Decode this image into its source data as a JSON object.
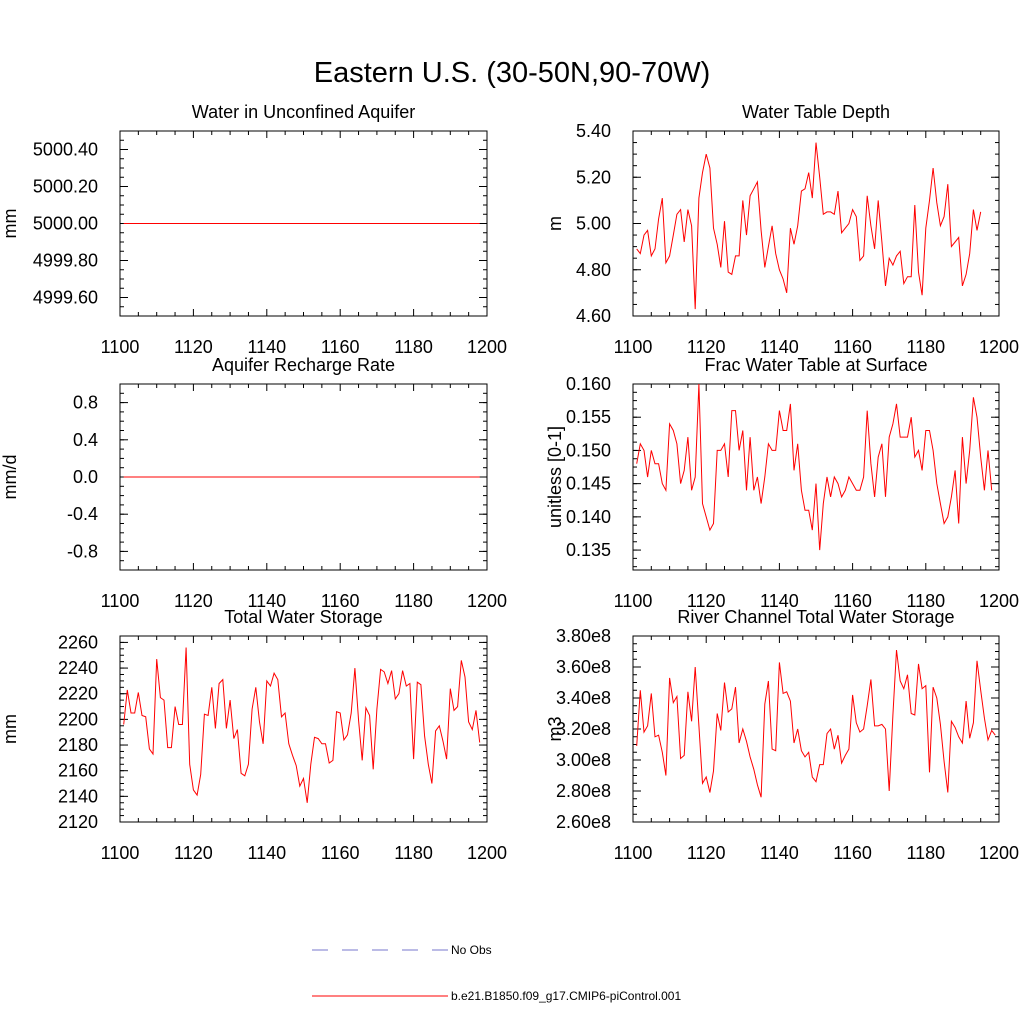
{
  "figure_title": "Eastern U.S. (30-50N,90-70W)",
  "legend": {
    "entries": [
      {
        "label": "No Obs",
        "color": "#7777cc",
        "dash": true
      },
      {
        "label": "b.e21.B1850.f09_g17.CMIP6-piControl.001",
        "color": "#ff0000",
        "dash": false
      }
    ]
  },
  "colors": {
    "series": "#ff0000",
    "obs": "#7777cc"
  },
  "chart_data": [
    {
      "type": "line",
      "title": "Water in Unconfined Aquifer",
      "ylabel": "mm",
      "xlim": [
        1100,
        1200
      ],
      "ylim": [
        4999.5,
        5000.5
      ],
      "xticks": [
        1100,
        1120,
        1140,
        1160,
        1180,
        1200
      ],
      "xtick_labels": [
        "1100",
        "1120",
        "1140",
        "1160",
        "1180",
        "1200"
      ],
      "yticks": [
        4999.6,
        4999.8,
        5000.0,
        5000.2,
        5000.4
      ],
      "ytick_labels": [
        "4999.60",
        "4999.80",
        "5000.00",
        "5000.20",
        "5000.40"
      ],
      "x_start": 1101,
      "series": [
        {
          "values": [
            5000,
            5000
          ]
        }
      ],
      "x_end": 1198
    },
    {
      "type": "line",
      "title": "Water Table Depth",
      "ylabel": "m",
      "xlim": [
        1100,
        1200
      ],
      "ylim": [
        4.6,
        5.4
      ],
      "xticks": [
        1100,
        1120,
        1140,
        1160,
        1180,
        1200
      ],
      "xtick_labels": [
        "1100",
        "1120",
        "1140",
        "1160",
        "1180",
        "1200"
      ],
      "yticks": [
        4.6,
        4.8,
        5.0,
        5.2,
        5.4
      ],
      "ytick_labels": [
        "4.60",
        "4.80",
        "5.00",
        "5.20",
        "5.40"
      ],
      "x_start": 1101,
      "series": [
        {
          "values": [
            4.89,
            4.87,
            4.95,
            4.97,
            4.86,
            4.89,
            5.02,
            5.11,
            4.83,
            4.86,
            4.95,
            5.04,
            5.06,
            4.92,
            5.06,
            4.99,
            4.63,
            5.11,
            5.22,
            5.3,
            5.24,
            4.98,
            4.91,
            4.81,
            5.01,
            4.79,
            4.78,
            4.86,
            4.86,
            5.1,
            4.95,
            5.12,
            5.15,
            5.18,
            4.97,
            4.81,
            4.9,
            4.99,
            4.87,
            4.8,
            4.76,
            4.7,
            4.98,
            4.91,
            4.99,
            5.14,
            5.15,
            5.22,
            5.11,
            5.35,
            5.2,
            5.04,
            5.05,
            5.05,
            5.04,
            5.14,
            4.96,
            4.98,
            5.0,
            5.06,
            5.03,
            4.84,
            4.86,
            5.12,
            4.99,
            4.89,
            5.1,
            4.92,
            4.73,
            4.85,
            4.82,
            4.86,
            4.88,
            4.74,
            4.77,
            4.77,
            5.08,
            4.79,
            4.69,
            4.98,
            5.1,
            5.24,
            5.09,
            4.99,
            5.03,
            5.17,
            4.9,
            4.92,
            4.94,
            4.73,
            4.78,
            4.87,
            5.06,
            4.97,
            5.05
          ]
        }
      ]
    },
    {
      "type": "line",
      "title": "Aquifer Recharge Rate",
      "ylabel": "mm/d",
      "xlim": [
        1100,
        1200
      ],
      "ylim": [
        -1.0,
        1.0
      ],
      "xticks": [
        1100,
        1120,
        1140,
        1160,
        1180,
        1200
      ],
      "xtick_labels": [
        "1100",
        "1120",
        "1140",
        "1160",
        "1180",
        "1200"
      ],
      "yticks": [
        -0.8,
        -0.4,
        0.0,
        0.4,
        0.8
      ],
      "ytick_labels": [
        "-0.8",
        "-0.4",
        "0.0",
        "0.4",
        "0.8"
      ],
      "x_start": 1101,
      "series": [
        {
          "values": [
            0,
            0
          ]
        }
      ],
      "x_end": 1198
    },
    {
      "type": "line",
      "title": "Frac Water Table at Surface",
      "ylabel": "unitless [0-1]",
      "xlim": [
        1100,
        1200
      ],
      "ylim": [
        0.132,
        0.16
      ],
      "xticks": [
        1100,
        1120,
        1140,
        1160,
        1180,
        1200
      ],
      "xtick_labels": [
        "1100",
        "1120",
        "1140",
        "1160",
        "1180",
        "1200"
      ],
      "yticks": [
        0.135,
        0.14,
        0.145,
        0.15,
        0.155,
        0.16
      ],
      "ytick_labels": [
        "0.135",
        "0.140",
        "0.145",
        "0.150",
        "0.155",
        "0.160"
      ],
      "x_start": 1101,
      "series": [
        {
          "values": [
            0.148,
            0.151,
            0.15,
            0.146,
            0.15,
            0.148,
            0.148,
            0.145,
            0.144,
            0.154,
            0.153,
            0.151,
            0.145,
            0.147,
            0.152,
            0.144,
            0.146,
            0.16,
            0.142,
            0.14,
            0.138,
            0.139,
            0.15,
            0.15,
            0.151,
            0.146,
            0.156,
            0.156,
            0.15,
            0.153,
            0.144,
            0.152,
            0.144,
            0.146,
            0.142,
            0.146,
            0.151,
            0.15,
            0.15,
            0.156,
            0.153,
            0.153,
            0.157,
            0.147,
            0.151,
            0.144,
            0.141,
            0.141,
            0.138,
            0.145,
            0.135,
            0.142,
            0.146,
            0.143,
            0.146,
            0.145,
            0.143,
            0.144,
            0.146,
            0.145,
            0.144,
            0.144,
            0.146,
            0.156,
            0.148,
            0.143,
            0.149,
            0.151,
            0.143,
            0.152,
            0.154,
            0.157,
            0.152,
            0.152,
            0.152,
            0.155,
            0.149,
            0.15,
            0.147,
            0.153,
            0.153,
            0.15,
            0.145,
            0.142,
            0.139,
            0.14,
            0.143,
            0.147,
            0.139,
            0.152,
            0.145,
            0.15,
            0.158,
            0.155,
            0.149,
            0.144,
            0.15,
            0.144
          ]
        }
      ]
    },
    {
      "type": "line",
      "title": "Total Water Storage",
      "ylabel": "mm",
      "xlim": [
        1100,
        1200
      ],
      "ylim": [
        2120,
        2265
      ],
      "xticks": [
        1100,
        1120,
        1140,
        1160,
        1180,
        1200
      ],
      "xtick_labels": [
        "1100",
        "1120",
        "1140",
        "1160",
        "1180",
        "1200"
      ],
      "yticks": [
        2120,
        2140,
        2160,
        2180,
        2200,
        2220,
        2240,
        2260
      ],
      "ytick_labels": [
        "2120",
        "2140",
        "2160",
        "2180",
        "2200",
        "2220",
        "2240",
        "2260"
      ],
      "x_start": 1101,
      "series": [
        {
          "values": [
            2196,
            2223,
            2205,
            2205,
            2221,
            2203,
            2202,
            2177,
            2173,
            2247,
            2217,
            2215,
            2178,
            2178,
            2210,
            2196,
            2196,
            2256,
            2165,
            2145,
            2141,
            2157,
            2204,
            2203,
            2225,
            2193,
            2228,
            2231,
            2193,
            2215,
            2185,
            2192,
            2158,
            2156,
            2165,
            2208,
            2225,
            2198,
            2181,
            2230,
            2226,
            2236,
            2231,
            2202,
            2205,
            2181,
            2172,
            2164,
            2148,
            2154,
            2135,
            2165,
            2186,
            2185,
            2181,
            2181,
            2166,
            2168,
            2206,
            2205,
            2184,
            2188,
            2205,
            2240,
            2199,
            2168,
            2209,
            2203,
            2161,
            2208,
            2239,
            2237,
            2228,
            2238,
            2216,
            2220,
            2238,
            2226,
            2228,
            2169,
            2229,
            2227,
            2187,
            2165,
            2150,
            2191,
            2195,
            2183,
            2169,
            2224,
            2207,
            2210,
            2246,
            2233,
            2198,
            2192,
            2207,
            2182
          ]
        }
      ]
    },
    {
      "type": "line",
      "title": "River Channel Total Water Storage",
      "ylabel": "m3",
      "xlim": [
        1100,
        1200
      ],
      "ylim": [
        260000000.0,
        380000000.0
      ],
      "xticks": [
        1100,
        1120,
        1140,
        1160,
        1180,
        1200
      ],
      "xtick_labels": [
        "1100",
        "1120",
        "1140",
        "1160",
        "1180",
        "1200"
      ],
      "yticks": [
        260000000.0,
        280000000.0,
        300000000.0,
        320000000.0,
        340000000.0,
        360000000.0,
        380000000.0
      ],
      "ytick_labels": [
        "2.60e8",
        "2.80e8",
        "3.00e8",
        "3.20e8",
        "3.40e8",
        "3.60e8",
        "3.80e8"
      ],
      "x_start": 1101,
      "series": [
        {
          "values": [
            309000000.0,
            345000000.0,
            318000000.0,
            322000000.0,
            343000000.0,
            315000000.0,
            316000000.0,
            305000000.0,
            290000000.0,
            353000000.0,
            337000000.0,
            341000000.0,
            301000000.0,
            303000000.0,
            344000000.0,
            325000000.0,
            360000000.0,
            322000000.0,
            285000000.0,
            289000000.0,
            279000000.0,
            293000000.0,
            330000000.0,
            319000000.0,
            350000000.0,
            331000000.0,
            333000000.0,
            347000000.0,
            311000000.0,
            320000000.0,
            312000000.0,
            302000000.0,
            294000000.0,
            284000000.0,
            276000000.0,
            336000000.0,
            351000000.0,
            307000000.0,
            306000000.0,
            363000000.0,
            343000000.0,
            344000000.0,
            338000000.0,
            311000000.0,
            320000000.0,
            306000000.0,
            302000000.0,
            305000000.0,
            289000000.0,
            286000000.0,
            297000000.0,
            297000000.0,
            317000000.0,
            320000000.0,
            307000000.0,
            316000000.0,
            298000000.0,
            303000000.0,
            307000000.0,
            342000000.0,
            324000000.0,
            318000000.0,
            320000000.0,
            335000000.0,
            352000000.0,
            322000000.0,
            322000000.0,
            323000000.0,
            320000000.0,
            280000000.0,
            329000000.0,
            371000000.0,
            351000000.0,
            346000000.0,
            355000000.0,
            330000000.0,
            329000000.0,
            362000000.0,
            346000000.0,
            348000000.0,
            292000000.0,
            347000000.0,
            340000000.0,
            323000000.0,
            299000000.0,
            279000000.0,
            325000000.0,
            321000000.0,
            315000000.0,
            311000000.0,
            338000000.0,
            314000000.0,
            324000000.0,
            364000000.0,
            345000000.0,
            327000000.0,
            313000000.0,
            319000000.0,
            316000000.0
          ]
        }
      ]
    }
  ]
}
